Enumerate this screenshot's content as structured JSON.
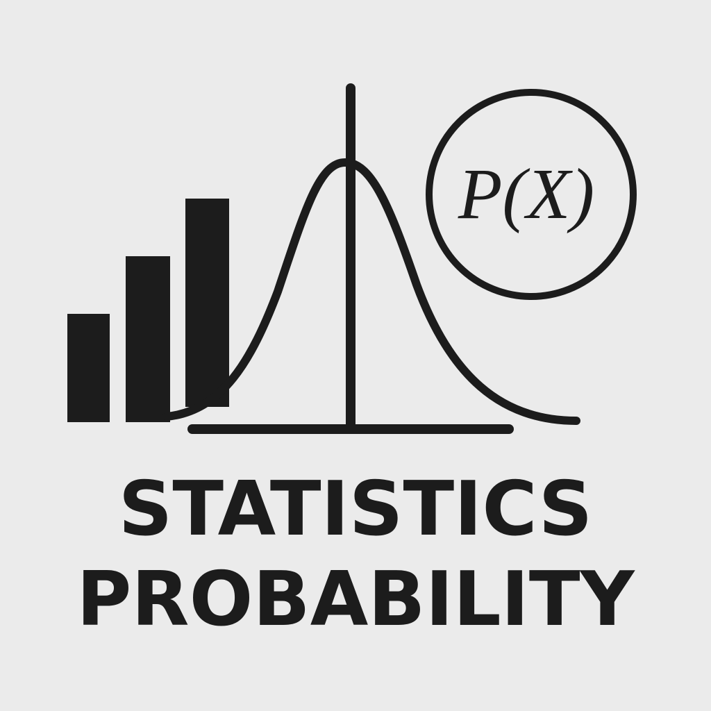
{
  "badge": {
    "label": "P(X)"
  },
  "title": {
    "lines": [
      "STATISTICS",
      "PROBABILITY"
    ]
  }
}
